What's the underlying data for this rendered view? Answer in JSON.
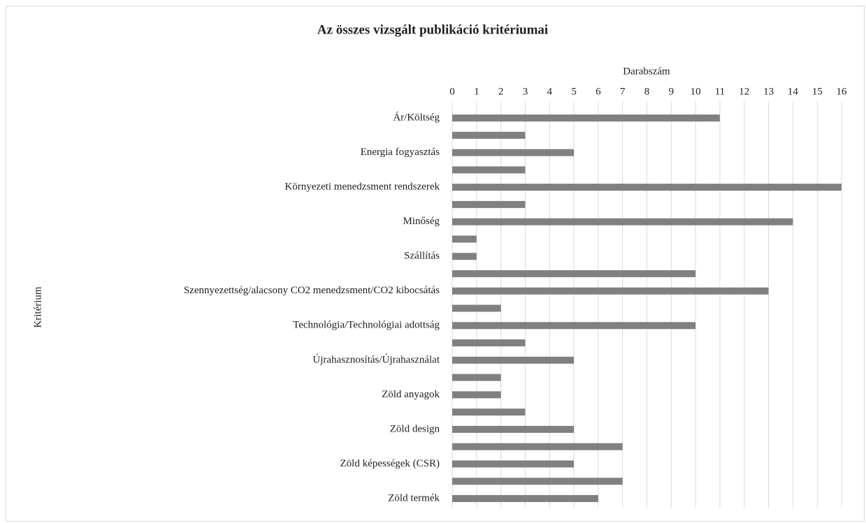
{
  "chart_data": {
    "type": "bar",
    "orientation": "horizontal",
    "title": "Az összes vizsgált publikáció kritériumai",
    "x_label": "Darabszám",
    "y_label": "Kritérium",
    "categories": [
      "Ár/Költség",
      null,
      "Energia fogyasztás",
      null,
      "Környezeti menedzsment rendszerek",
      null,
      "Minőség",
      null,
      "Szállítás",
      null,
      "Szennyezettség/alacsony CO2 menedzsment/CO2 kibocsátás",
      null,
      "Technológia/Technológiai adottság",
      null,
      "Újrahasznosítás/Újrahasználat",
      null,
      "Zöld anyagok",
      null,
      "Zöld design",
      null,
      "Zöld képességek (CSR)",
      null,
      "Zöld termék"
    ],
    "values": [
      11,
      3,
      5,
      3,
      16,
      3,
      14,
      1,
      1,
      10,
      13,
      2,
      10,
      3,
      5,
      2,
      2,
      3,
      5,
      7,
      5,
      7,
      6
    ],
    "color": "#808080",
    "xlim": [
      0,
      16
    ],
    "xticks": [
      0,
      1,
      2,
      3,
      4,
      5,
      6,
      7,
      8,
      9,
      10,
      11,
      12,
      13,
      14,
      15,
      16
    ],
    "grid": true
  }
}
